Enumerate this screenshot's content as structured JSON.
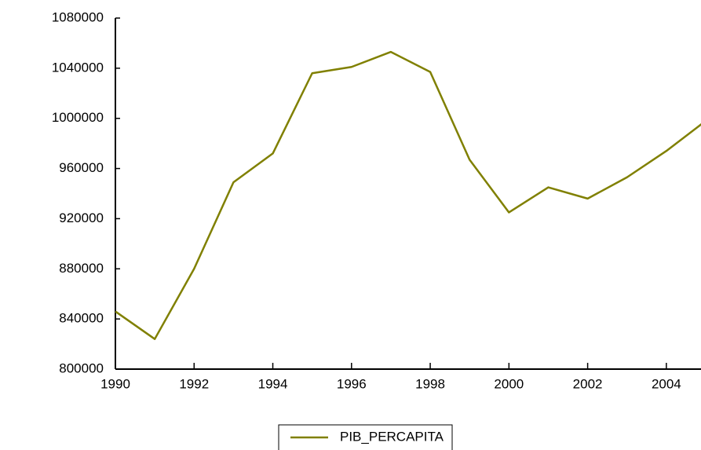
{
  "chart_data": {
    "type": "line",
    "x": [
      1990,
      1991,
      1992,
      1993,
      1994,
      1995,
      1996,
      1997,
      1998,
      1999,
      2000,
      2001,
      2002,
      2003,
      2004,
      2005
    ],
    "series": [
      {
        "name": "PIB_PERCAPITA",
        "color": "#808000",
        "values": [
          846000,
          824000,
          880000,
          949000,
          972000,
          1036000,
          1041000,
          1053000,
          1037000,
          967000,
          925000,
          945000,
          936000,
          953000,
          974000,
          998000
        ]
      }
    ],
    "xlim": [
      1990,
      2005
    ],
    "xticks": [
      1990,
      1992,
      1994,
      1996,
      1998,
      2000,
      2002,
      2004
    ],
    "ylim": [
      800000,
      1080000
    ],
    "yticks": [
      800000,
      840000,
      880000,
      920000,
      960000,
      1000000,
      1040000,
      1080000
    ],
    "legend": "bottom"
  }
}
